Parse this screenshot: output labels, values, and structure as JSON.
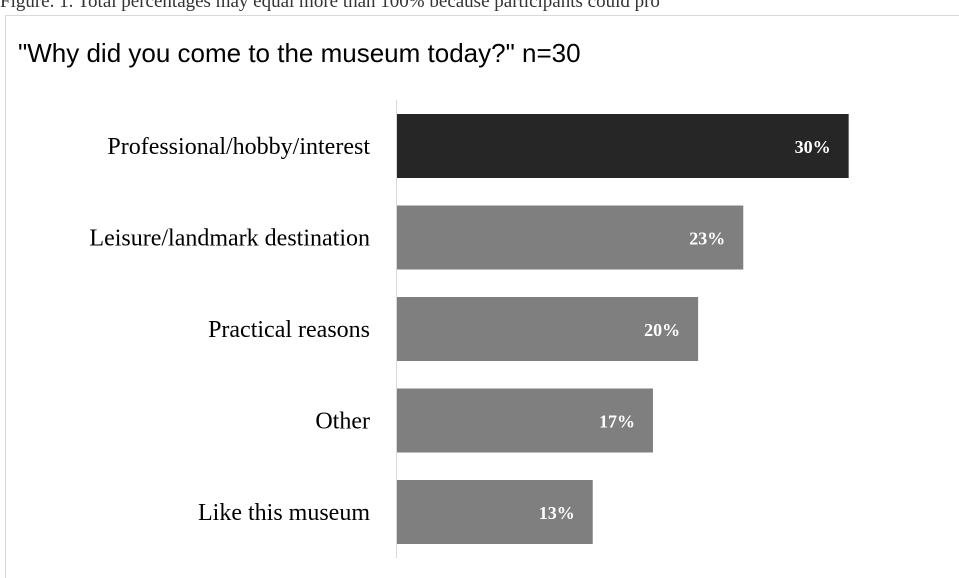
{
  "figure_caption": "Figure. 1. Total percentages may equal more than 100% because participants could pro",
  "colors": {
    "highlight_bar": "#262626",
    "bar": "#7f7f7f",
    "value_label": "#ffffff",
    "axis": "#d9d9d9"
  },
  "chart_data": {
    "type": "bar",
    "orientation": "horizontal",
    "title": "\"Why did you come to the museum today?\" n=30",
    "categories": [
      "Professional/hobby/interest",
      "Leisure/landmark destination",
      "Practical reasons",
      "Other",
      "Like this museum"
    ],
    "values": [
      30,
      23,
      20,
      17,
      13
    ],
    "value_labels": [
      "30%",
      "23%",
      "20%",
      "17%",
      "13%"
    ],
    "unit": "%",
    "xlabel": "",
    "ylabel": "",
    "xlim": [
      0,
      36
    ],
    "grid": false,
    "legend": "none"
  }
}
